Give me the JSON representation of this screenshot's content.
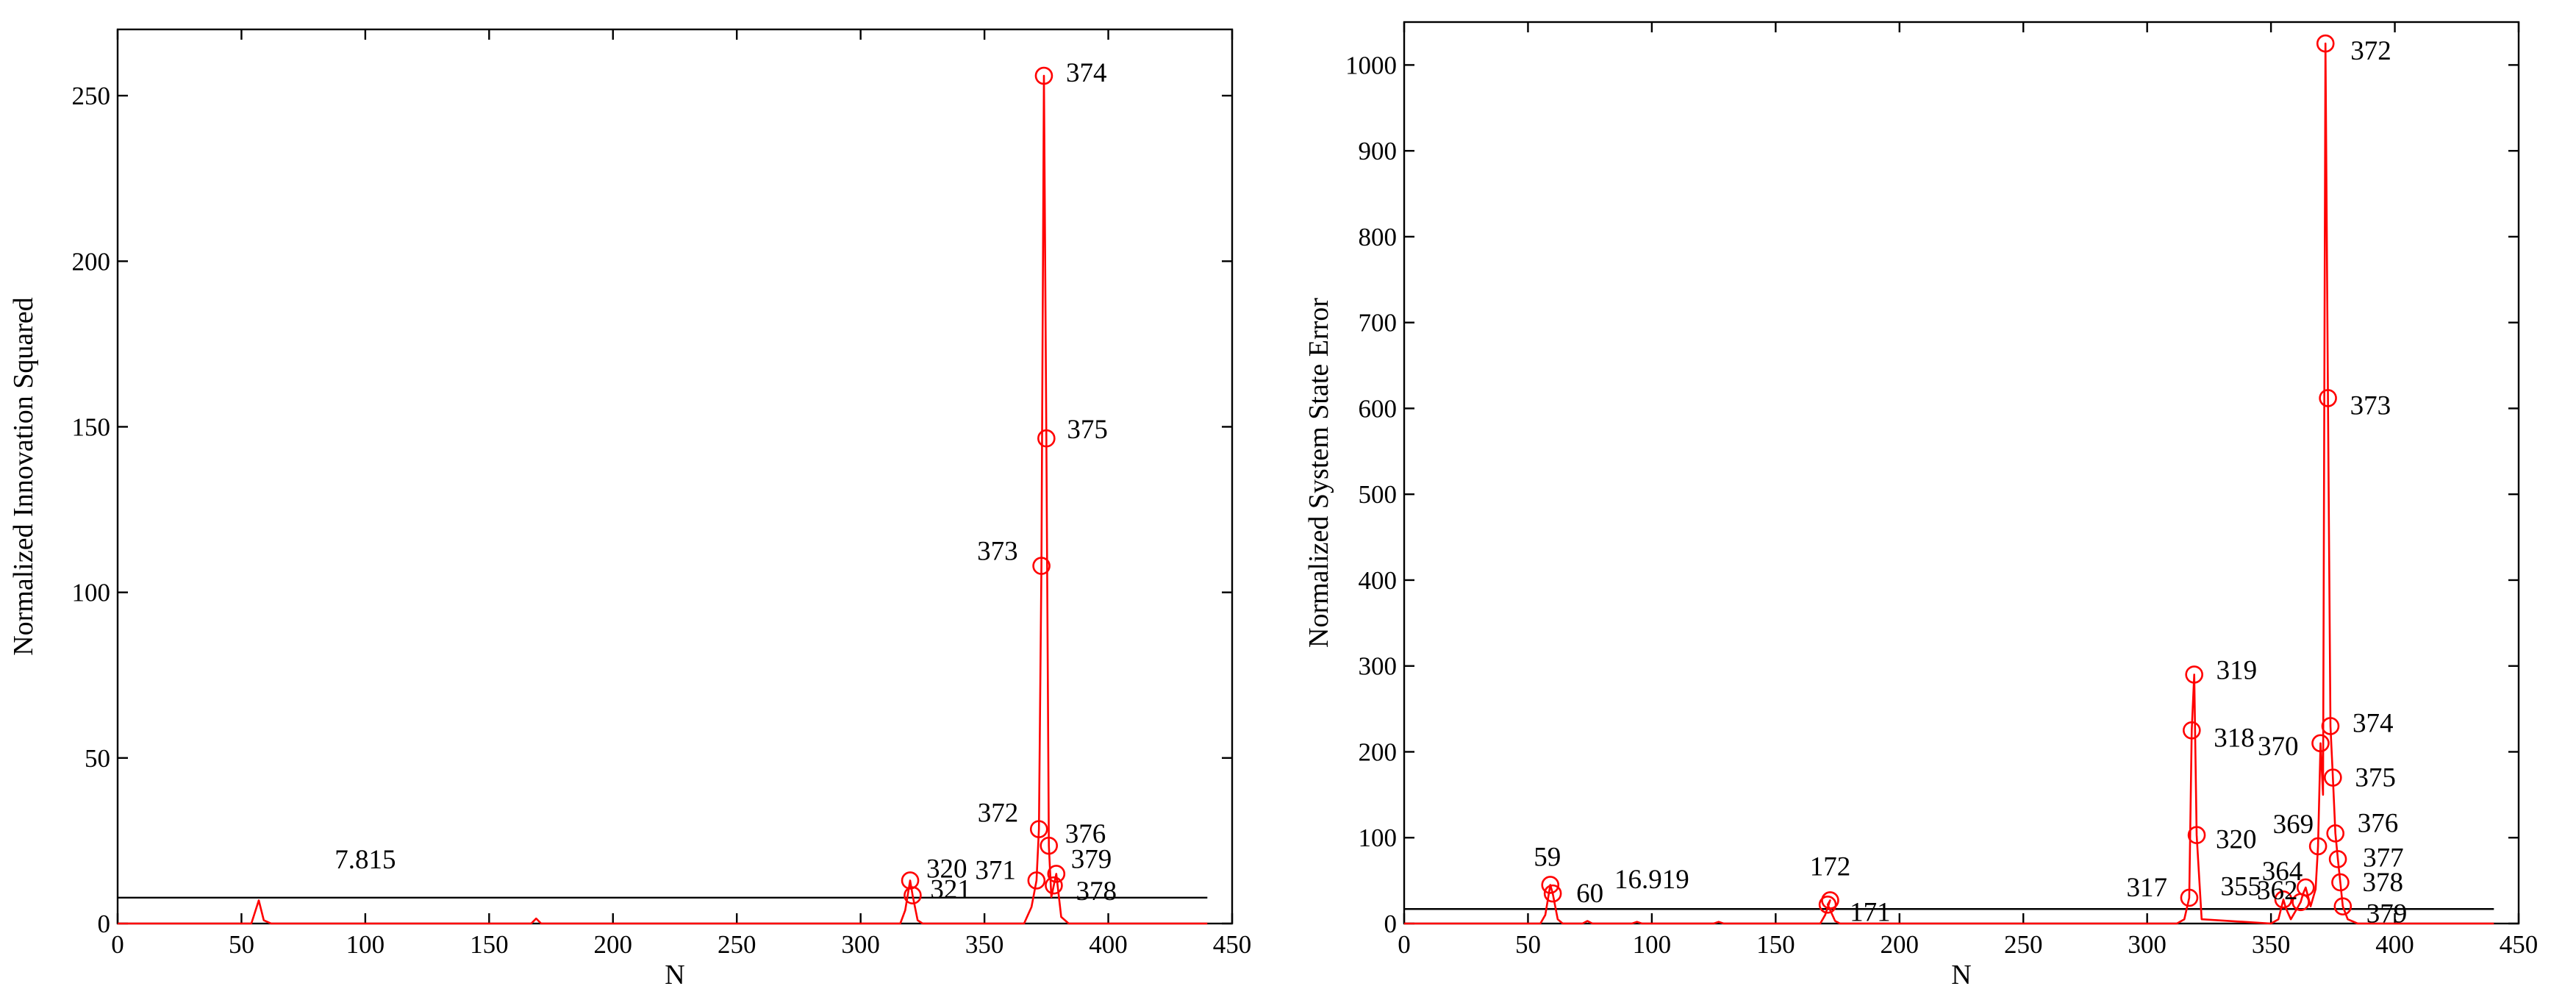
{
  "chart_data": [
    {
      "type": "line",
      "xlabel": "N",
      "ylabel": "Normalized Innovation Squared",
      "xlim": [
        0,
        450
      ],
      "ylim": [
        0,
        270
      ],
      "xticks": [
        0,
        50,
        100,
        150,
        200,
        250,
        300,
        350,
        400,
        450
      ],
      "yticks": [
        0,
        50,
        100,
        150,
        200,
        250
      ],
      "threshold": {
        "value": 7.815,
        "label": "7.815",
        "x_start": 0,
        "x_end": 440
      },
      "series": [
        {
          "color": "#ff0000",
          "x": [
            0,
            54,
            57,
            59,
            62,
            100,
            167,
            169,
            171,
            300,
            316,
            318,
            320,
            321,
            323,
            325,
            366,
            369,
            371,
            372,
            373,
            374,
            375,
            376,
            377,
            378,
            379,
            381,
            384,
            440
          ],
          "y": [
            0,
            0,
            7,
            1,
            0,
            0,
            0,
            1.5,
            0,
            0,
            0,
            4,
            13,
            8.5,
            1,
            0,
            0,
            5,
            13,
            28.5,
            108,
            256,
            146.5,
            23.5,
            8,
            11.5,
            15,
            2,
            0,
            0
          ]
        }
      ],
      "markers": [
        {
          "x": 320,
          "y": 13,
          "label": "320"
        },
        {
          "x": 321,
          "y": 8.5,
          "label": "321"
        },
        {
          "x": 371,
          "y": 13,
          "label": "371"
        },
        {
          "x": 372,
          "y": 28.5,
          "label": "372"
        },
        {
          "x": 373,
          "y": 108,
          "label": "373"
        },
        {
          "x": 374,
          "y": 256,
          "label": "374"
        },
        {
          "x": 375,
          "y": 146.5,
          "label": "375"
        },
        {
          "x": 376,
          "y": 23.5,
          "label": "376"
        },
        {
          "x": 378,
          "y": 11.5,
          "label": "378"
        },
        {
          "x": 379,
          "y": 15,
          "label": "379"
        }
      ]
    },
    {
      "type": "line",
      "xlabel": "N",
      "ylabel": "Normalized System State Error",
      "xlim": [
        0,
        450
      ],
      "ylim": [
        0,
        1050
      ],
      "xticks": [
        0,
        50,
        100,
        150,
        200,
        250,
        300,
        350,
        400,
        450
      ],
      "yticks": [
        0,
        100,
        200,
        300,
        400,
        500,
        600,
        700,
        800,
        900,
        1000
      ],
      "threshold": {
        "value": 16.919,
        "label": "16.919",
        "x_start": 0,
        "x_end": 440
      },
      "series": [
        {
          "color": "#ff0000",
          "x": [
            0,
            55,
            57,
            59,
            60,
            62,
            64,
            72,
            74,
            76,
            92,
            94,
            96,
            125,
            127,
            129,
            168,
            170,
            172,
            171,
            174,
            176,
            312,
            315,
            317,
            318,
            319,
            320,
            322,
            350,
            353,
            355,
            356,
            358,
            361,
            362,
            363,
            364,
            366,
            368,
            369,
            370,
            371,
            372,
            373,
            374,
            375,
            376,
            377,
            378,
            379,
            381,
            385,
            440
          ],
          "y": [
            0,
            0,
            10,
            45,
            35,
            5,
            0,
            0,
            3,
            0,
            0,
            2,
            0,
            0,
            2,
            0,
            0,
            10,
            27,
            22,
            3,
            0,
            0,
            5,
            30,
            225,
            290,
            103,
            5,
            0,
            5,
            28,
            18,
            5,
            20,
            25,
            35,
            42,
            20,
            40,
            90,
            210,
            150,
            1025,
            612,
            230,
            170,
            105,
            75,
            48,
            20,
            5,
            0,
            0
          ]
        }
      ],
      "markers": [
        {
          "x": 59,
          "y": 45,
          "label": "59"
        },
        {
          "x": 60,
          "y": 35,
          "label": "60"
        },
        {
          "x": 171,
          "y": 22,
          "label": "171"
        },
        {
          "x": 172,
          "y": 27,
          "label": "172"
        },
        {
          "x": 317,
          "y": 30,
          "label": "317"
        },
        {
          "x": 318,
          "y": 225,
          "label": "318"
        },
        {
          "x": 319,
          "y": 290,
          "label": "319"
        },
        {
          "x": 320,
          "y": 103,
          "label": "320"
        },
        {
          "x": 355,
          "y": 28,
          "label": "355"
        },
        {
          "x": 362,
          "y": 25,
          "label": "362"
        },
        {
          "x": 364,
          "y": 42,
          "label": "364"
        },
        {
          "x": 369,
          "y": 90,
          "label": "369"
        },
        {
          "x": 370,
          "y": 210,
          "label": "370"
        },
        {
          "x": 372,
          "y": 1025,
          "label": "372"
        },
        {
          "x": 373,
          "y": 612,
          "label": "373"
        },
        {
          "x": 374,
          "y": 230,
          "label": "374"
        },
        {
          "x": 375,
          "y": 170,
          "label": "375"
        },
        {
          "x": 376,
          "y": 105,
          "label": "376"
        },
        {
          "x": 377,
          "y": 75,
          "label": "377"
        },
        {
          "x": 378,
          "y": 48,
          "label": "378"
        },
        {
          "x": 379,
          "y": 20,
          "label": "379"
        }
      ]
    }
  ]
}
